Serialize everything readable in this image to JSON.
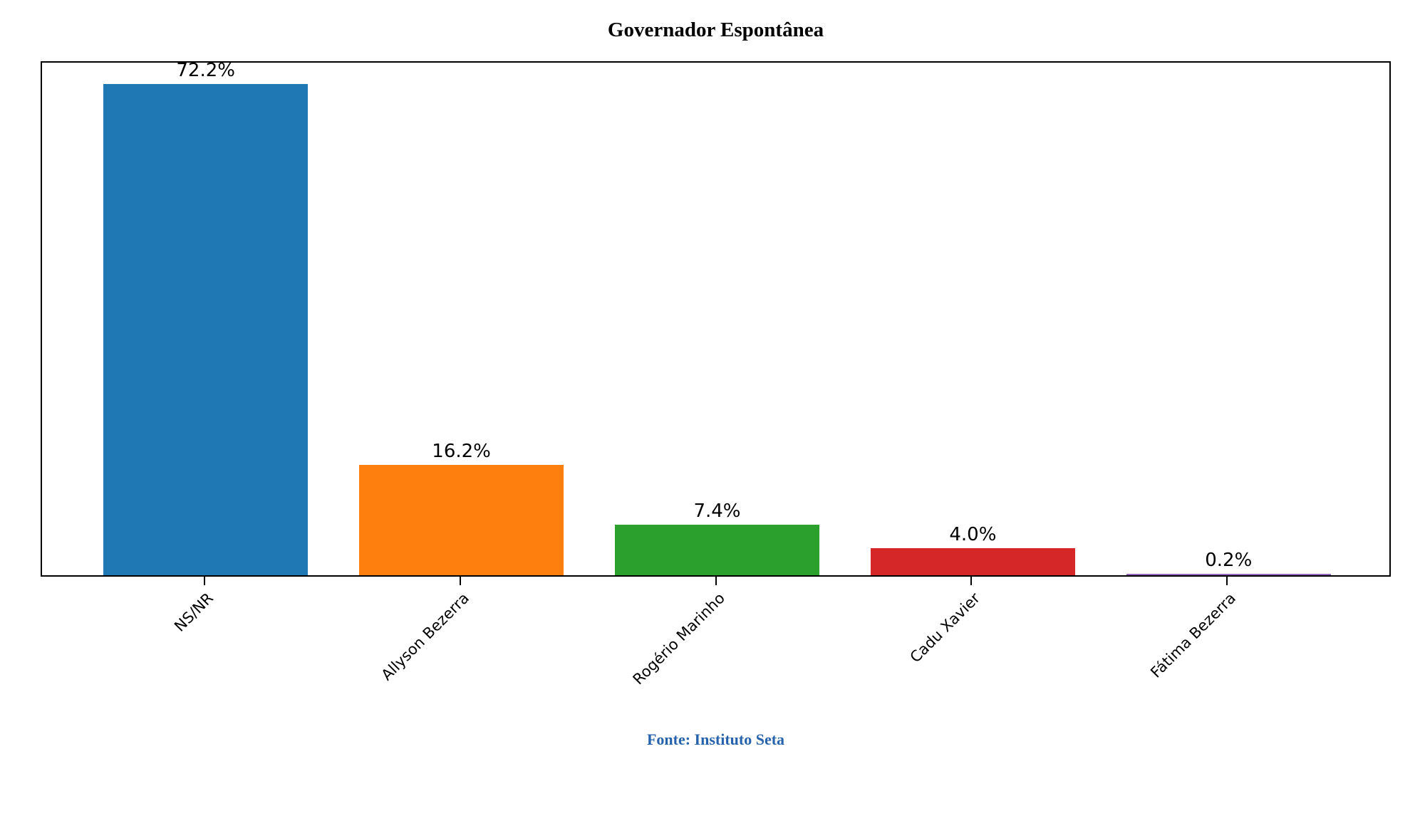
{
  "title": "Governador Espontânea",
  "source_note": "Fonte: Instituto Seta",
  "source_note_color": "#2663ac",
  "chart_data": {
    "type": "bar",
    "title": "Governador Espontânea",
    "categories": [
      "NS/NR",
      "Allyson Bezerra",
      "Rogério Marinho",
      "Cadu Xavier",
      "Fátima Bezerra"
    ],
    "values": [
      72.2,
      16.2,
      7.4,
      4.0,
      0.2
    ],
    "value_labels": [
      "72.2%",
      "16.2%",
      "7.4%",
      "4.0%",
      "0.2%"
    ],
    "bar_colors": [
      "#1f77b4",
      "#ff7f0e",
      "#2ca02c",
      "#d62728",
      "#9467bd"
    ],
    "xlabel": "",
    "ylabel": "",
    "ylim": [
      0,
      75.81
    ],
    "xlim": [
      -0.64,
      4.64
    ],
    "bar_width": 0.8,
    "grid": false,
    "legend": null,
    "tick_label_rotation": 45,
    "annotation": "Fonte: Instituto Seta"
  }
}
